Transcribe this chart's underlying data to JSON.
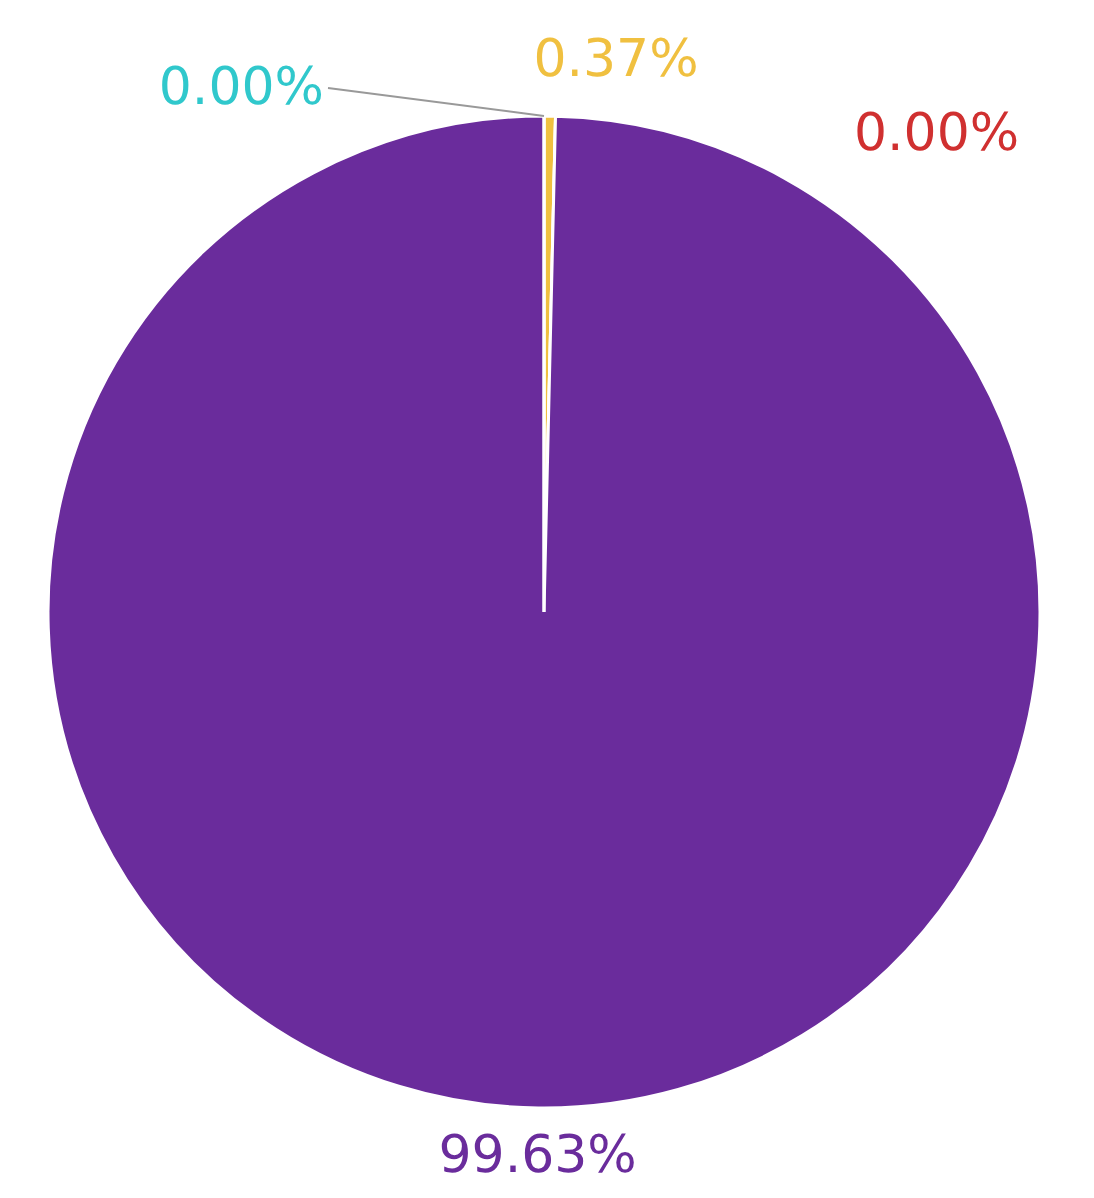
{
  "chart_data": {
    "type": "pie",
    "categories": [
      null,
      null,
      null,
      null
    ],
    "values": [
      0.37,
      0.0,
      99.63,
      0.0
    ],
    "colors": [
      "#f0c040",
      "#d03030",
      "#6a2c9c",
      "#30c8cc"
    ],
    "value_labels": [
      "0.37%",
      "0.00%",
      "99.63%",
      "0.00%"
    ]
  }
}
